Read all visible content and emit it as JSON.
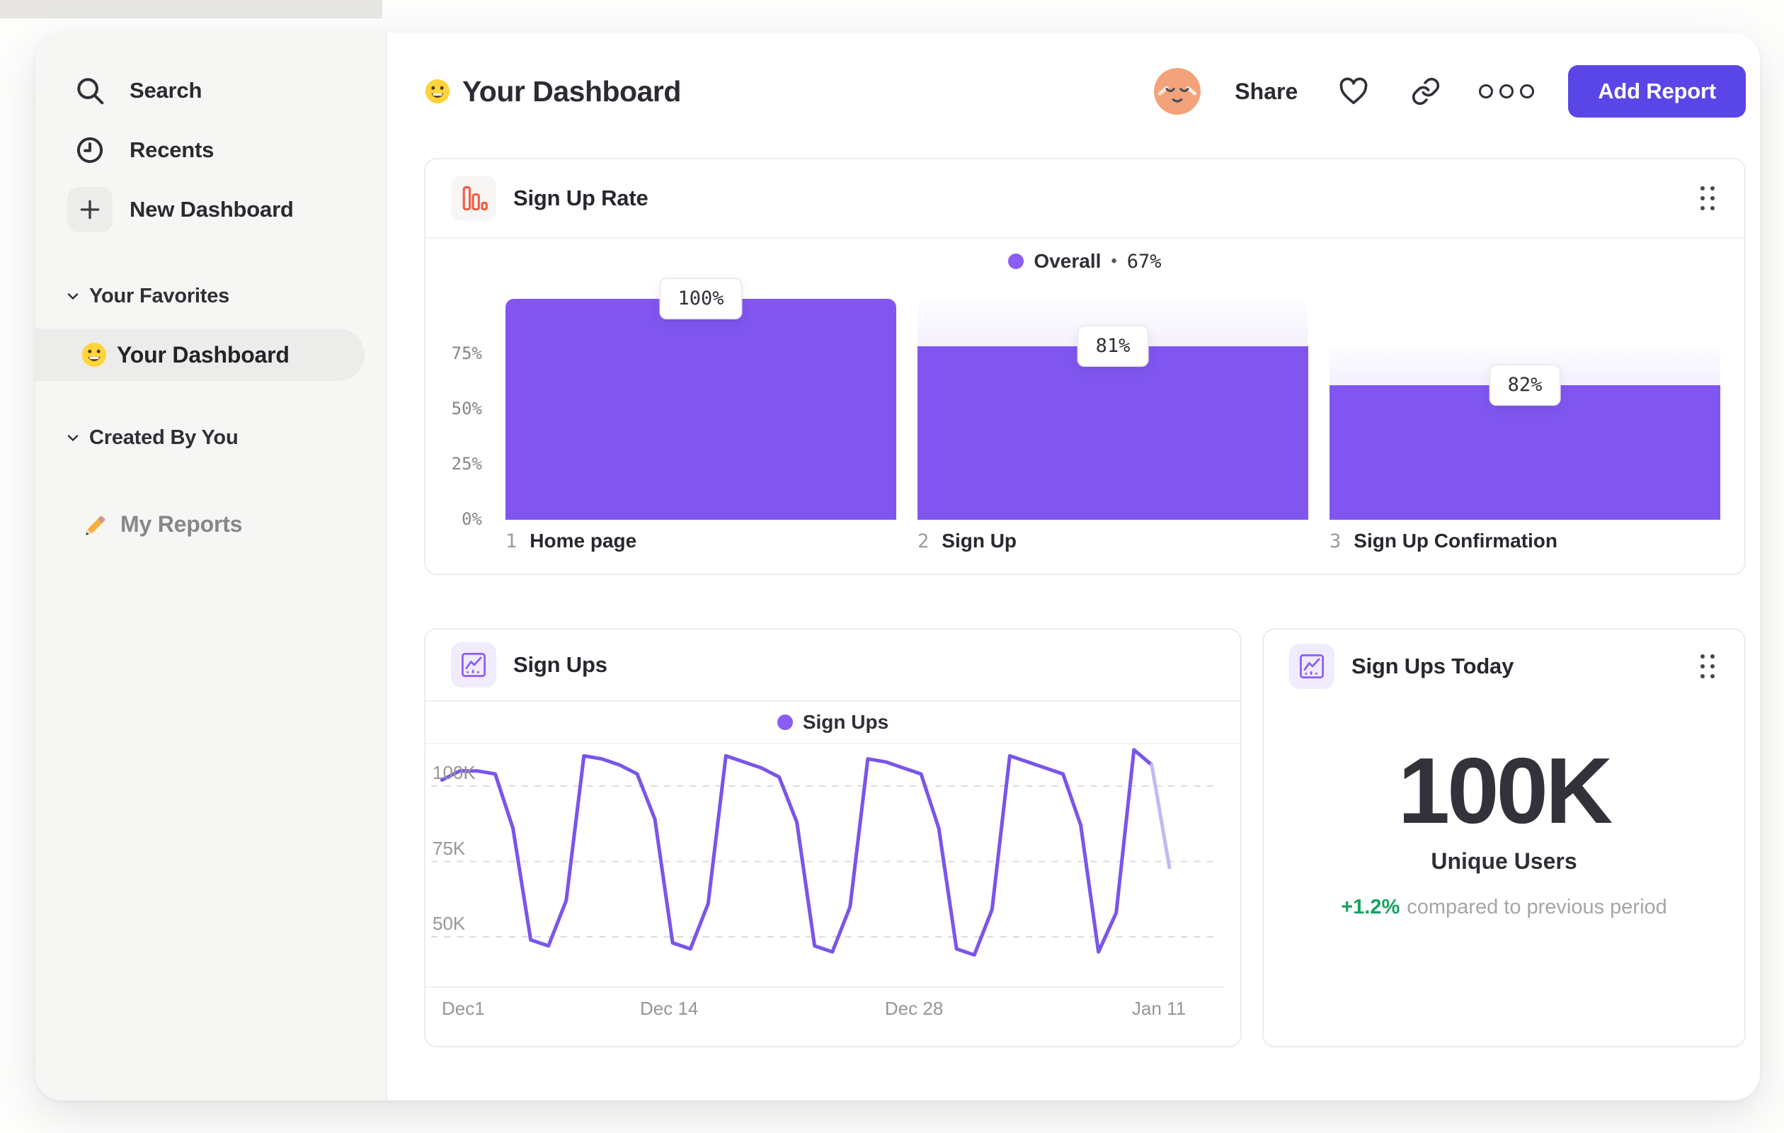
{
  "sidebar": {
    "nav_items": [
      {
        "label": "Search",
        "icon": "search-icon"
      },
      {
        "label": "Recents",
        "icon": "clock-icon"
      },
      {
        "label": "New Dashboard",
        "icon": "plus-icon"
      }
    ],
    "sections": [
      {
        "title": "Your Favorites",
        "items": [
          {
            "label": "Your Dashboard",
            "icon": "smiley-emoji",
            "selected": true
          }
        ]
      },
      {
        "title": "Created By You",
        "items": [
          {
            "label": "My Reports",
            "icon": "pencil-emoji",
            "selected": false
          }
        ]
      }
    ]
  },
  "header": {
    "title": "Your Dashboard",
    "share_label": "Share",
    "add_report_label": "Add Report"
  },
  "cards": {
    "signup_rate": {
      "title": "Sign Up Rate",
      "legend": {
        "series": "Overall",
        "separator": "•",
        "value": "67%"
      }
    },
    "signups": {
      "title": "Sign Ups",
      "legend": {
        "series": "Sign Ups"
      }
    },
    "signups_today": {
      "title": "Sign Ups Today",
      "value": "100K",
      "metric": "Unique Users",
      "delta": "+1.2%",
      "delta_note": "compared to previous period"
    }
  },
  "chart_data": [
    {
      "id": "signup_rate",
      "type": "bar",
      "title": "Sign Up Rate",
      "categories": [
        "Home page",
        "Sign Up",
        "Sign Up Confirmation"
      ],
      "category_indices": [
        "1",
        "2",
        "3"
      ],
      "values": [
        100,
        81,
        82
      ],
      "value_labels": [
        "100%",
        "81%",
        "82%"
      ],
      "overall_pct": "67%",
      "yticks": [
        "75%",
        "50%",
        "25%",
        "0%"
      ],
      "ytick_values": [
        75,
        50,
        25,
        0
      ],
      "ylim": [
        0,
        104
      ],
      "legend_position": "top-center",
      "grid": false,
      "draw": {
        "totals_pct_abs": [
          100,
          100,
          78.5
        ],
        "fills_pct_abs": [
          100,
          78.5,
          60.9
        ]
      }
    },
    {
      "id": "signups",
      "type": "line",
      "title": "Sign Ups",
      "x_range": [
        "Dec 1",
        "Jan 11"
      ],
      "x_tick_labels": [
        "Dec1",
        "Dec 14",
        "Dec 28",
        "Jan 11"
      ],
      "x_tick_indices": [
        0,
        13,
        27,
        41
      ],
      "yticks": [
        "100K",
        "75K",
        "50K"
      ],
      "ytick_values": [
        100,
        75,
        50
      ],
      "unit": "K",
      "grid": "dashed-horizontal",
      "legend_position": "top-center",
      "faded_last_segment": true,
      "series": [
        {
          "name": "Sign Ups",
          "values": [
            102,
            105,
            105,
            104,
            86,
            49,
            47,
            62,
            110,
            109,
            107,
            104,
            89,
            48,
            46,
            61,
            110,
            108,
            106,
            103,
            88,
            47,
            45,
            60,
            109,
            108,
            106,
            104,
            86,
            46,
            44,
            59,
            110,
            108,
            106,
            104,
            87,
            45,
            58,
            112,
            107,
            73
          ]
        }
      ]
    }
  ],
  "colors": {
    "accent_purple": "#5A46E6",
    "bar_purple": "#8156F0",
    "legend_dot_purple": "#8B5CF6",
    "line_purple": "#7A55EA",
    "line_faded": "#C5B8F4",
    "icon_orange": "#F25C41",
    "delta_green": "#12A35F"
  }
}
